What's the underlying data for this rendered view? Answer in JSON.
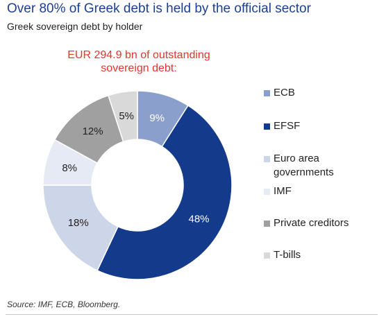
{
  "header": {
    "title": "Over 80% of Greek debt is held by the official sector",
    "subtitle": "Greek sovereign debt by holder"
  },
  "annotation": {
    "line1": "EUR 294.9 bn of outstanding",
    "line2": "sovereign debt:"
  },
  "source": "Source: IMF, ECB, Bloomberg.",
  "chart_data": {
    "type": "pie",
    "donut": true,
    "title": "Greek sovereign debt by holder",
    "slices": [
      {
        "label": "ECB",
        "value": 9,
        "display": "9%",
        "color": "#8b9fcc",
        "label_color": "#ffffff"
      },
      {
        "label": "EFSF",
        "value": 48,
        "display": "48%",
        "color": "#143a8c",
        "label_color": "#ffffff"
      },
      {
        "label": "Euro area governments",
        "value": 18,
        "display": "18%",
        "color": "#cdd5e8",
        "label_color": "#222222"
      },
      {
        "label": "IMF",
        "value": 8,
        "display": "8%",
        "color": "#e6eaf4",
        "label_color": "#222222"
      },
      {
        "label": "Private creditors",
        "value": 12,
        "display": "12%",
        "color": "#a0a0a0",
        "label_color": "#222222"
      },
      {
        "label": "T-bills",
        "value": 5,
        "display": "5%",
        "color": "#d9d9d9",
        "label_color": "#222222"
      }
    ],
    "legend": {
      "position": "right",
      "items": [
        {
          "lines": [
            "ECB"
          ],
          "color": "#8b9fcc"
        },
        {
          "lines": [
            "EFSF"
          ],
          "color": "#143a8c"
        },
        {
          "lines": [
            "Euro area",
            "governments"
          ],
          "color": "#cdd5e8"
        },
        {
          "lines": [
            "IMF"
          ],
          "color": "#e6eaf4"
        },
        {
          "lines": [
            "Private creditors"
          ],
          "color": "#a0a0a0"
        },
        {
          "lines": [
            "T-bills"
          ],
          "color": "#d9d9d9"
        }
      ]
    }
  }
}
